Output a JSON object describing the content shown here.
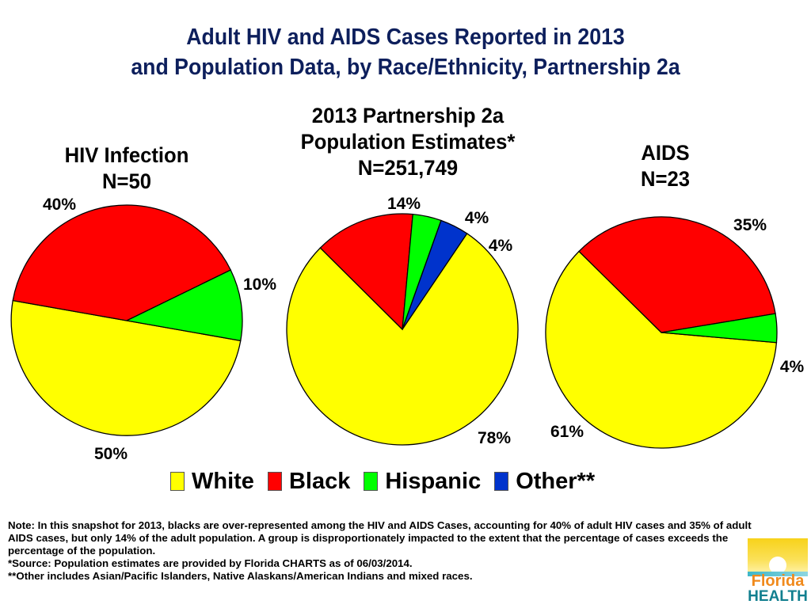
{
  "title": {
    "line1": "Adult HIV and AIDS Cases Reported in 2013",
    "line2": "and Population Data, by Race/Ethnicity, Partnership 2a"
  },
  "colors": {
    "White": "#ffff00",
    "Black": "#ff0000",
    "Hispanic": "#00ff00",
    "Other**": "#0033cc",
    "title": "#0d1f5c"
  },
  "legend": [
    {
      "label": "White",
      "color": "#ffff00"
    },
    {
      "label": "Black",
      "color": "#ff0000"
    },
    {
      "label": "Hispanic",
      "color": "#00ff00"
    },
    {
      "label": "Other**",
      "color": "#0033cc"
    }
  ],
  "chart_data": [
    {
      "type": "pie",
      "title": "HIV Infection",
      "subtitle": "N=50",
      "categories": [
        "White",
        "Black",
        "Hispanic"
      ],
      "values": [
        50,
        40,
        10
      ],
      "labels": [
        "50%",
        "40%",
        "10%"
      ]
    },
    {
      "type": "pie",
      "title": "2013 Partnership 2a Population Estimates*",
      "title_lines": [
        "2013 Partnership 2a",
        "Population Estimates*"
      ],
      "subtitle": "N=251,749",
      "categories": [
        "White",
        "Black",
        "Hispanic",
        "Other**"
      ],
      "values": [
        78,
        14,
        4,
        4
      ],
      "labels": [
        "78%",
        "14%",
        "4%",
        "4%"
      ]
    },
    {
      "type": "pie",
      "title": "AIDS",
      "subtitle": "N=23",
      "categories": [
        "White",
        "Black",
        "Hispanic"
      ],
      "values": [
        61,
        35,
        4
      ],
      "labels": [
        "61%",
        "35%",
        "4%"
      ]
    }
  ],
  "notes": [
    "Note:  In this snapshot for 2013, blacks are over-represented among the HIV and AIDS Cases, accounting for 40% of adult HIV cases and 35% of adult AIDS cases, but only 14% of the adult population.  A group is disproportionately impacted to the extent that the percentage of cases exceeds the percentage of the population.",
    "*Source: Population estimates are provided by Florida CHARTS as of 06/03/2014.",
    "**Other includes Asian/Pacific Islanders, Native Alaskans/American Indians and mixed races."
  ],
  "logo": {
    "word1": "Florida",
    "word2": "HEALTH"
  }
}
